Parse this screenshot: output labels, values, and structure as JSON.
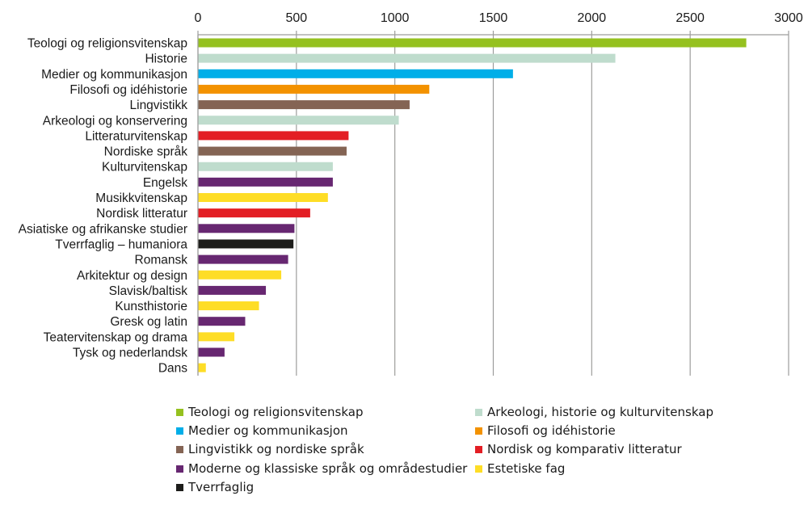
{
  "chart_data": {
    "type": "bar",
    "orientation": "horizontal",
    "title": "",
    "xlabel": "",
    "ylabel": "",
    "xlim": [
      0,
      3000
    ],
    "x_ticks": [
      0,
      500,
      1000,
      1500,
      2000,
      2500,
      3000
    ],
    "x_tick_labels": [
      "0",
      "500",
      "1000",
      "1500",
      "2000",
      "2500",
      "3000"
    ],
    "x_axis_position": "top",
    "grid": true,
    "legend_position": "bottom",
    "categories": [
      "Teologi og religionsvitenskap",
      "Historie",
      "Medier og kommunikasjon",
      "Filosofi og idéhistorie",
      "Lingvistikk",
      "Arkeologi og konservering",
      "Litteraturvitenskap",
      "Nordiske språk",
      "Kulturvitenskap",
      "Engelsk",
      "Musikkvitenskap",
      "Nordisk litteratur",
      "Asiatiske og afrikanske studier",
      "Tverrfaglig – humaniora",
      "Romansk",
      "Arkitektur og design",
      "Slavisk/baltisk",
      "Kunsthistorie",
      "Gresk og latin",
      "Teatervitenskap og drama",
      "Tysk og nederlandsk",
      "Dans"
    ],
    "values": [
      2785,
      2120,
      1600,
      1175,
      1075,
      1020,
      765,
      755,
      685,
      685,
      660,
      570,
      490,
      485,
      458,
      423,
      345,
      310,
      240,
      185,
      135,
      40
    ],
    "groups": [
      0,
      1,
      2,
      3,
      4,
      1,
      5,
      4,
      1,
      6,
      7,
      5,
      6,
      8,
      6,
      7,
      6,
      7,
      6,
      7,
      6,
      7
    ],
    "legend": [
      {
        "label": "Teologi og religionsvitenskap",
        "color": "#95c11f"
      },
      {
        "label": "Arkeologi, historie og kulturvitenskap",
        "color": "#bfdccd"
      },
      {
        "label": "Medier og kommunikasjon",
        "color": "#00aee8"
      },
      {
        "label": "Filosofi og idéhistorie",
        "color": "#f39200"
      },
      {
        "label": "Lingvistikk og nordiske språk",
        "color": "#846454"
      },
      {
        "label": "Nordisk og komparativ litteratur",
        "color": "#e31e24"
      },
      {
        "label": "Moderne og klassiske språk og områdestudier",
        "color": "#672771"
      },
      {
        "label": "Estetiske fag",
        "color": "#fedd26"
      },
      {
        "label": "Tverrfaglig",
        "color": "#1d1d1b"
      }
    ]
  },
  "colors": {
    "grid": "#9d9d9c",
    "axis": "#878787",
    "text": "#1a1a1a"
  }
}
